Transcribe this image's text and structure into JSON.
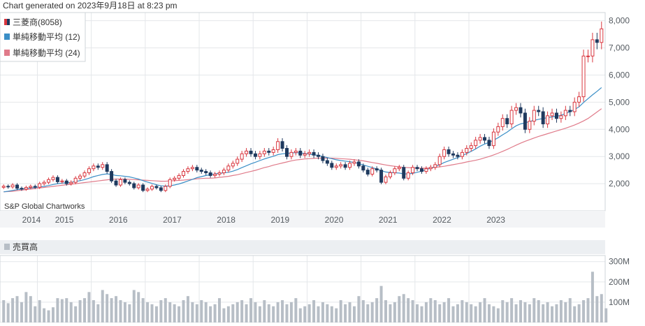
{
  "header": {
    "generated_text": "Chart generated on 2023年9月18日 at 8:23 pm",
    "credit": "S&P Global Chartworks"
  },
  "colors": {
    "up": "#d9363e",
    "down": "#1f3a5f",
    "sma12": "#3b8fc7",
    "sma24": "#e07b8a",
    "volume": "#b7bec6",
    "grid": "#e4e7ea",
    "axis_text": "#555b61"
  },
  "legend": {
    "items": [
      {
        "label": "三菱商(8058)",
        "icon": "candle-icon"
      },
      {
        "label": "単純移動平均 (12)",
        "icon": "blue-square-icon"
      },
      {
        "label": "単純移動平均 (24)",
        "icon": "pink-square-icon"
      }
    ]
  },
  "volume_panel": {
    "label": "売買高"
  },
  "chart_data": [
    {
      "type": "candlestick",
      "title": "",
      "series": [
        {
          "name": "三菱商(8058)"
        },
        {
          "name": "単純移動平均 (12)"
        },
        {
          "name": "単純移動平均 (24)"
        }
      ],
      "x_ticks": [
        "2014",
        "2015",
        "2016",
        "2017",
        "2018",
        "2019",
        "2020",
        "2021",
        "2022",
        "2023"
      ],
      "y_ticks": [
        "2,000",
        "3,000",
        "4,000",
        "5,000",
        "6,000",
        "7,000",
        "8,000"
      ],
      "ylim": [
        1000,
        8300
      ],
      "grid": true,
      "legend_position": "top-left",
      "close": [
        1905,
        1880,
        1950,
        1830,
        1800,
        1860,
        1900,
        1870,
        2000,
        2050,
        2150,
        2230,
        2070,
        2100,
        2000,
        2050,
        2200,
        2280,
        2400,
        2550,
        2650,
        2600,
        2700,
        2450,
        2100,
        1950,
        2150,
        2050,
        2000,
        1850,
        1950,
        1750,
        1800,
        1900,
        1850,
        1750,
        1900,
        2150,
        2200,
        2300,
        2450,
        2550,
        2600,
        2500,
        2450,
        2400,
        2300,
        2350,
        2400,
        2500,
        2650,
        2750,
        2900,
        3100,
        3200,
        3100,
        3000,
        3100,
        3200,
        3150,
        3250,
        3550,
        3300,
        3000,
        3150,
        3200,
        3050,
        3100,
        3150,
        3050,
        3000,
        2850,
        2750,
        2600,
        2650,
        2700,
        2600,
        2750,
        2800,
        2650,
        2500,
        2350,
        2550,
        2500,
        2050,
        2250,
        2400,
        2550,
        2600,
        2200,
        2400,
        2600,
        2550,
        2450,
        2550,
        2600,
        2700,
        3000,
        3250,
        3100,
        3050,
        3000,
        3150,
        3300,
        3400,
        3600,
        3700,
        3600,
        3400,
        3900,
        4100,
        4400,
        4200,
        4700,
        4800,
        4600,
        4000,
        4300,
        4700,
        4650,
        4200,
        4500,
        4600,
        4400,
        4500,
        4700,
        4650,
        5000,
        5200,
        6700,
        6700,
        7300,
        7200,
        7700
      ],
      "sma12": [
        1700,
        1720,
        1750,
        1780,
        1800,
        1820,
        1840,
        1860,
        1880,
        1900,
        1930,
        1970,
        2000,
        2020,
        2030,
        2050,
        2080,
        2110,
        2150,
        2200,
        2260,
        2300,
        2340,
        2360,
        2340,
        2300,
        2290,
        2270,
        2250,
        2210,
        2170,
        2110,
        2060,
        2010,
        1960,
        1920,
        1910,
        1920,
        1950,
        1990,
        2040,
        2100,
        2160,
        2220,
        2260,
        2300,
        2330,
        2360,
        2380,
        2400,
        2420,
        2460,
        2520,
        2590,
        2660,
        2730,
        2790,
        2850,
        2910,
        2960,
        3010,
        3070,
        3100,
        3110,
        3130,
        3140,
        3130,
        3110,
        3090,
        3060,
        3040,
        3000,
        2960,
        2920,
        2880,
        2850,
        2830,
        2810,
        2780,
        2740,
        2690,
        2640,
        2590,
        2540,
        2480,
        2430,
        2410,
        2400,
        2390,
        2360,
        2360,
        2380,
        2420,
        2460,
        2520,
        2570,
        2630,
        2700,
        2780,
        2840,
        2900,
        2960,
        3030,
        3110,
        3190,
        3280,
        3380,
        3460,
        3520,
        3600,
        3690,
        3800,
        3900,
        4020,
        4130,
        4200,
        4240,
        4290,
        4330,
        4370,
        4400,
        4430,
        4460,
        4480,
        4520,
        4580,
        4650,
        4730,
        4830,
        4990,
        5130,
        5270,
        5400,
        5540
      ],
      "sma24": [
        1700,
        1710,
        1720,
        1740,
        1760,
        1780,
        1800,
        1820,
        1840,
        1860,
        1880,
        1900,
        1920,
        1940,
        1960,
        1980,
        2000,
        2020,
        2040,
        2060,
        2080,
        2100,
        2120,
        2140,
        2160,
        2170,
        2170,
        2170,
        2160,
        2150,
        2140,
        2130,
        2120,
        2110,
        2100,
        2090,
        2090,
        2100,
        2110,
        2120,
        2130,
        2150,
        2160,
        2180,
        2190,
        2200,
        2200,
        2210,
        2230,
        2250,
        2270,
        2300,
        2330,
        2370,
        2410,
        2450,
        2490,
        2540,
        2590,
        2630,
        2680,
        2720,
        2760,
        2800,
        2840,
        2870,
        2890,
        2910,
        2920,
        2930,
        2940,
        2940,
        2940,
        2940,
        2930,
        2920,
        2910,
        2900,
        2880,
        2860,
        2840,
        2810,
        2780,
        2750,
        2720,
        2690,
        2660,
        2640,
        2620,
        2600,
        2590,
        2580,
        2570,
        2570,
        2570,
        2580,
        2600,
        2620,
        2640,
        2670,
        2700,
        2730,
        2760,
        2800,
        2830,
        2860,
        2900,
        2950,
        3000,
        3060,
        3120,
        3190,
        3260,
        3340,
        3420,
        3490,
        3560,
        3620,
        3680,
        3740,
        3790,
        3840,
        3890,
        3940,
        3990,
        4040,
        4100,
        4160,
        4230,
        4310,
        4400,
        4520,
        4640,
        4760
      ],
      "volume_ylim": [
        0,
        330
      ],
      "volume_y_ticks": [
        "100M",
        "200M",
        "300M"
      ],
      "volume_millions": [
        110,
        95,
        120,
        130,
        100,
        150,
        130,
        80,
        110,
        70,
        60,
        75,
        120,
        115,
        120,
        100,
        80,
        110,
        120,
        150,
        110,
        90,
        160,
        140,
        120,
        130,
        110,
        100,
        90,
        160,
        150,
        120,
        100,
        90,
        80,
        110,
        120,
        100,
        90,
        80,
        110,
        130,
        100,
        90,
        110,
        100,
        80,
        90,
        120,
        70,
        80,
        90,
        100,
        110,
        90,
        120,
        100,
        80,
        110,
        90,
        80,
        100,
        110,
        90,
        100,
        120,
        70,
        80,
        90,
        110,
        80,
        100,
        90,
        80,
        70,
        110,
        90,
        100,
        80,
        130,
        110,
        90,
        100,
        120,
        180,
        110,
        90,
        100,
        130,
        140,
        120,
        110,
        90,
        80,
        100,
        120,
        110,
        90,
        100,
        120,
        80,
        90,
        110,
        100,
        90,
        80,
        100,
        120,
        90,
        80,
        70,
        110,
        100,
        120,
        90,
        110,
        100,
        90,
        120,
        110,
        90,
        100,
        80,
        90,
        110,
        100,
        120,
        80,
        90,
        110,
        120,
        250,
        130,
        140,
        70
      ]
    }
  ]
}
